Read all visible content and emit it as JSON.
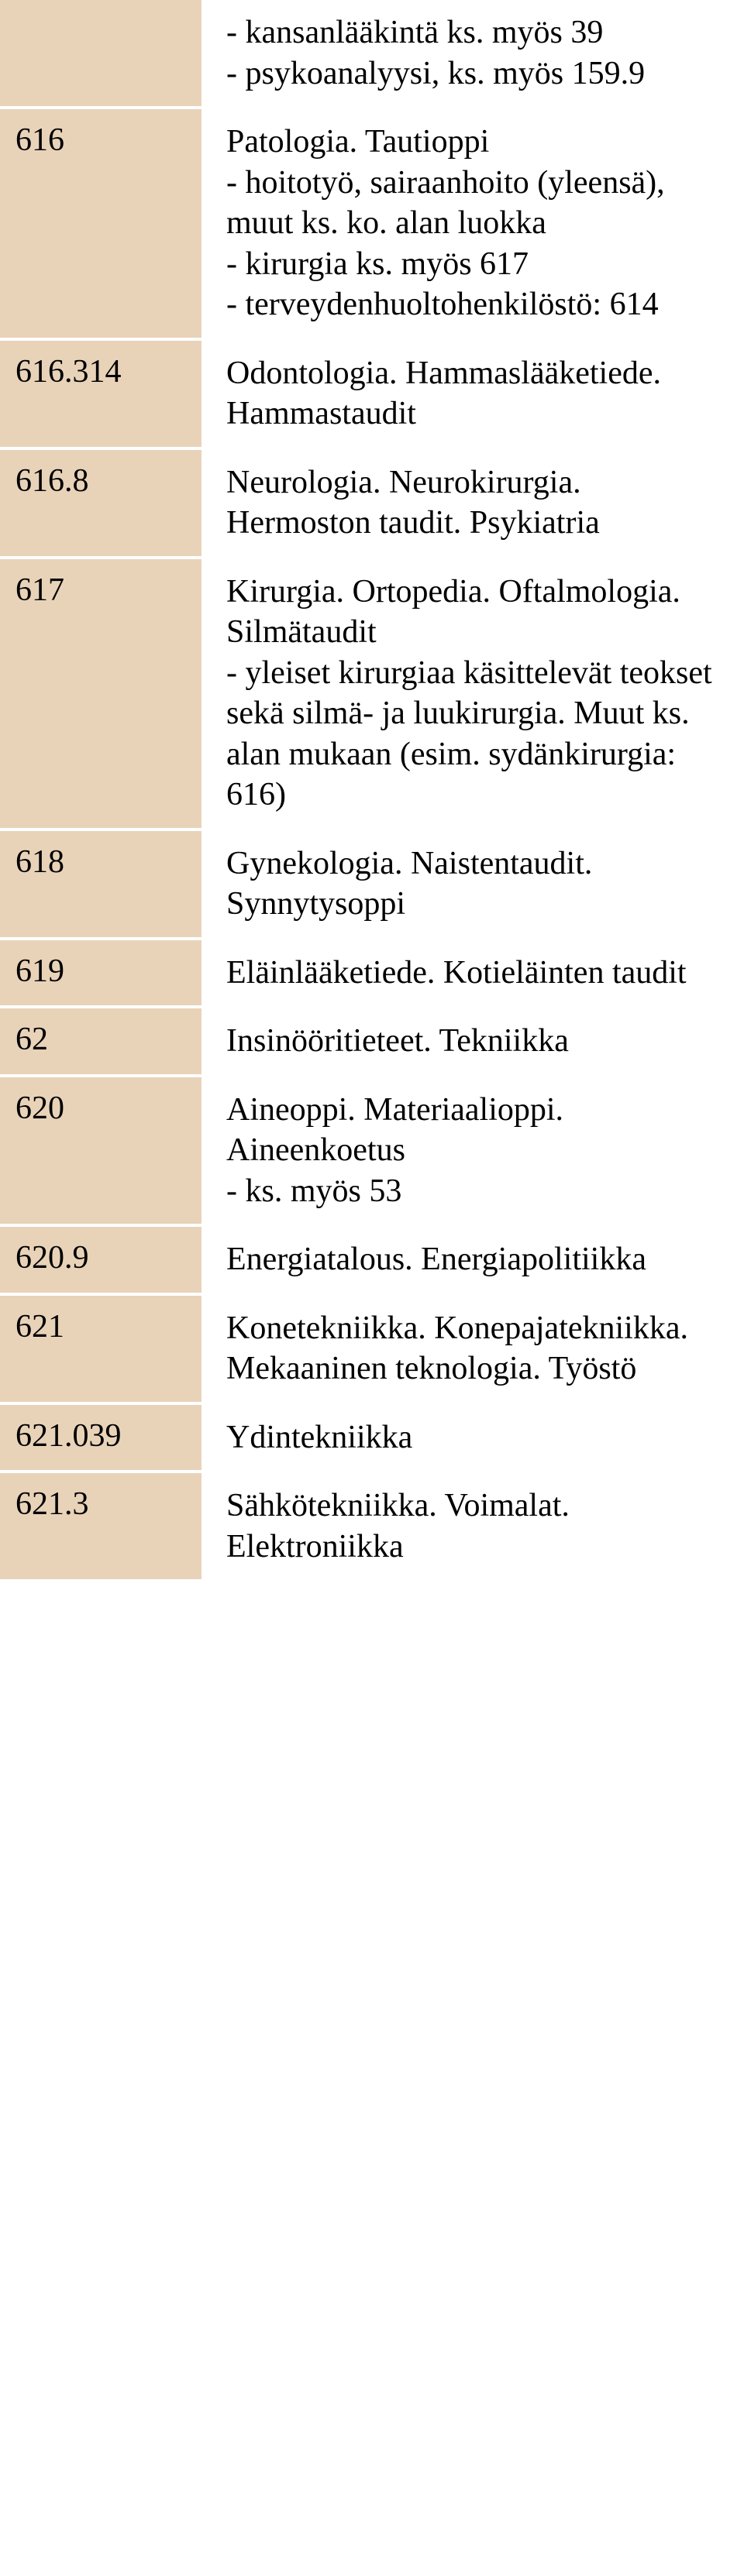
{
  "colors": {
    "code_bg": "#e8d3b9",
    "desc_bg": "#ffffff",
    "text": "#000000",
    "row_gap": "#ffffff"
  },
  "typography": {
    "font_family": "Times New Roman",
    "font_size_pt": 32
  },
  "rows": [
    {
      "code": "",
      "desc": "- kansanlääkintä ks. myös 39\n- psykoanalyysi, ks. myös 159.9"
    },
    {
      "code": "616",
      "desc": "Patologia. Tautioppi\n- hoitotyö, sairaanhoito (yleensä), muut ks. ko. alan luokka\n- kirurgia ks. myös 617\n- terveydenhuoltohenkilöstö: 614"
    },
    {
      "code": "616.314",
      "desc": "Odontologia. Hammaslääketiede. Hammastaudit"
    },
    {
      "code": "616.8",
      "desc": "Neurologia. Neurokirurgia. Hermoston taudit. Psykiatria"
    },
    {
      "code": "617",
      "desc": "Kirurgia. Ortopedia. Oftalmologia. Silmätaudit\n- yleiset kirurgiaa käsittelevät teokset sekä silmä- ja luukirurgia. Muut ks. alan mukaan (esim. sydänkirurgia: 616)"
    },
    {
      "code": "618",
      "desc": "Gynekologia. Naistentaudit. Synnytysoppi"
    },
    {
      "code": "619",
      "desc": "Eläinlääketiede. Kotieläinten taudit"
    },
    {
      "code": "62",
      "desc": "Insinööritieteet. Tekniikka"
    },
    {
      "code": "620",
      "desc": "Aineoppi. Materiaalioppi. Aineenkoetus\n- ks. myös 53"
    },
    {
      "code": "620.9",
      "desc": "Energiatalous. Energiapolitiikka"
    },
    {
      "code": "621",
      "desc": "Konetekniikka. Konepajatekniikka. Mekaaninen teknologia. Työstö"
    },
    {
      "code": "621.039",
      "desc": "Ydintekniikka"
    },
    {
      "code": "621.3",
      "desc": "Sähkötekniikka. Voimalat. Elektroniikka"
    }
  ]
}
